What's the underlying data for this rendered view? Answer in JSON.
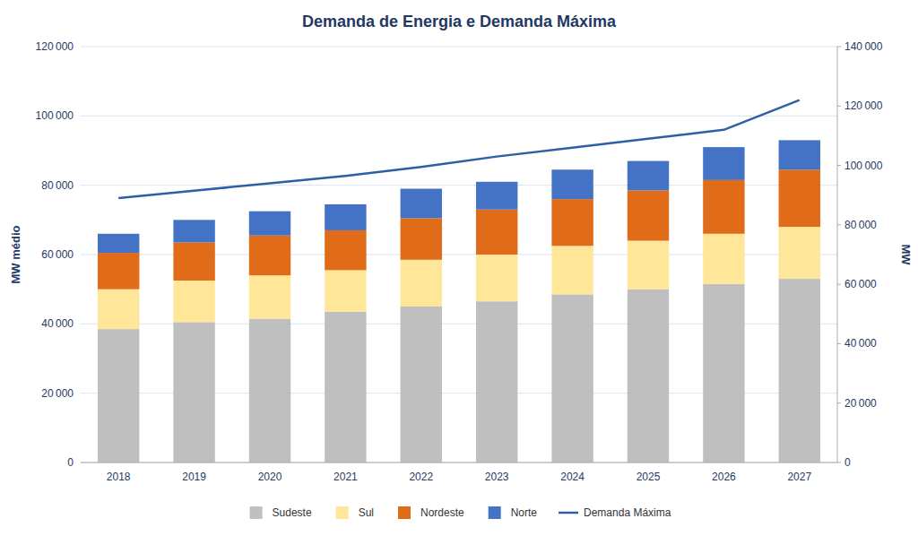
{
  "chart_data": {
    "type": "bar",
    "title": "Demanda de Energia e Demanda Máxima",
    "y_label": "MW médio",
    "y2_label": "MW",
    "categories": [
      "2018",
      "2019",
      "2020",
      "2021",
      "2022",
      "2023",
      "2024",
      "2025",
      "2026",
      "2027"
    ],
    "stacked": true,
    "grid": true,
    "legend": "bottom",
    "series": [
      {
        "name": "Sudeste",
        "type": "bar",
        "color": "#BFBFBF",
        "values": [
          38500,
          40500,
          41500,
          43500,
          45000,
          46500,
          48500,
          50000,
          51500,
          53000
        ]
      },
      {
        "name": "Sul",
        "type": "bar",
        "color": "#FFE699",
        "values": [
          11500,
          12000,
          12500,
          12000,
          13500,
          13500,
          14000,
          14000,
          14500,
          15000
        ]
      },
      {
        "name": "Nordeste",
        "type": "bar",
        "color": "#E06C1A",
        "values": [
          10500,
          11000,
          11500,
          11500,
          12000,
          13000,
          13500,
          14500,
          15500,
          16500
        ]
      },
      {
        "name": "Norte",
        "type": "bar",
        "color": "#4472C4",
        "values": [
          5500,
          6500,
          7000,
          7500,
          8500,
          8000,
          8500,
          8500,
          9500,
          8500
        ]
      },
      {
        "name": "Demanda Máxima",
        "type": "line",
        "axis": "y2",
        "color": "#2E5FA3",
        "values": [
          89000,
          91500,
          94000,
          96500,
          99500,
          103000,
          106000,
          109000,
          112000,
          122000
        ]
      }
    ],
    "ylim": [
      0,
      120000
    ],
    "yticks": [
      0,
      {
        "value": 20000,
        "label": "20 000"
      },
      {
        "value": 40000,
        "label": "40 000"
      },
      {
        "value": 60000,
        "label": "60 000"
      },
      {
        "value": 80000,
        "label": "80 000"
      },
      {
        "value": 100000,
        "label": "100 000"
      },
      {
        "value": 120000,
        "label": "120 000"
      }
    ],
    "y2lim": [
      0,
      140000
    ],
    "y2ticks": [
      0,
      {
        "value": 20000,
        "label": "20 000"
      },
      {
        "value": 40000,
        "label": "40 000"
      },
      {
        "value": 60000,
        "label": "60 000"
      },
      {
        "value": 80000,
        "label": "80 000"
      },
      {
        "value": 100000,
        "label": "100 000"
      },
      {
        "value": 120000,
        "label": "120 000"
      },
      {
        "value": 140000,
        "label": "140 000"
      }
    ]
  }
}
